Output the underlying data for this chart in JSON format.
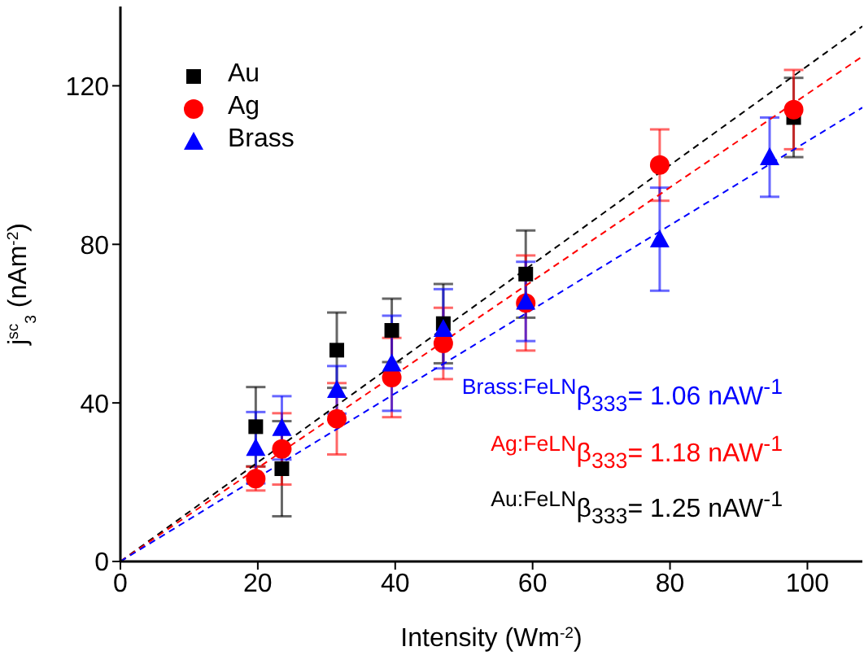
{
  "chart_data": {
    "type": "scatter",
    "xlabel": "Intensity (Wm$^{-2}$)",
    "ylabel": "j$^{sc}$$_{3}$ (nAm$^{-2}$)",
    "xlim": [
      0,
      108
    ],
    "xticks": [
      0,
      20,
      40,
      60,
      80,
      100
    ],
    "ylim": [
      0,
      140
    ],
    "yticks": [
      0,
      40,
      80,
      120
    ],
    "grid": false,
    "legend": "top left",
    "series": [
      {
        "name": "Au",
        "color": "#000000",
        "marker": "square",
        "x": [
          19.7,
          23.5,
          31.5,
          39.5,
          47,
          59,
          98
        ],
        "values": [
          34,
          23.4,
          53.3,
          58.3,
          60,
          72.5,
          112
        ],
        "errors": [
          10,
          12,
          9.5,
          8,
          10,
          11,
          10
        ]
      },
      {
        "name": "Ag",
        "color": "#ff0000",
        "marker": "circle",
        "x": [
          19.7,
          23.5,
          31.5,
          39.5,
          47,
          59,
          78.5,
          98
        ],
        "values": [
          20.9,
          28.4,
          36,
          46.4,
          55,
          65.2,
          100,
          114
        ],
        "errors": [
          3,
          9,
          9,
          10,
          9,
          12,
          9,
          10
        ]
      },
      {
        "name": "Brass",
        "color": "#0000ff",
        "marker": "triangle",
        "x": [
          19.7,
          23.5,
          31.5,
          39.5,
          47,
          59,
          78.5,
          94.5
        ],
        "values": [
          28.7,
          33.7,
          43.3,
          50,
          58.7,
          65.6,
          81.3,
          102
        ],
        "errors": [
          9,
          8,
          6,
          12,
          10,
          10,
          13,
          10
        ]
      },
      {
        "type": "line",
        "color": "#000000",
        "line_style": "dashed",
        "marker": "none",
        "x": [
          0,
          108
        ],
        "values": [
          0,
          135
        ]
      },
      {
        "type": "line",
        "color": "#ff0000",
        "line_style": "dashed",
        "marker": "none",
        "x": [
          0,
          108
        ],
        "values": [
          0,
          127.4
        ]
      },
      {
        "type": "line",
        "color": "#0000ff",
        "line_style": "dashed",
        "marker": "none",
        "x": [
          0,
          108
        ],
        "values": [
          0,
          114.5
        ]
      }
    ],
    "annotations": [
      "$^{Brass:FeLN}$β$_{333}$= 1.06 nAW$^{-1}$",
      "$^{Ag:FeLN}$β$_{333}$= 1.18 nAW$^{-1}$",
      "$^{Au:FeLN}$β$_{333}$= 1.25 nAW$^{-1}$"
    ]
  }
}
